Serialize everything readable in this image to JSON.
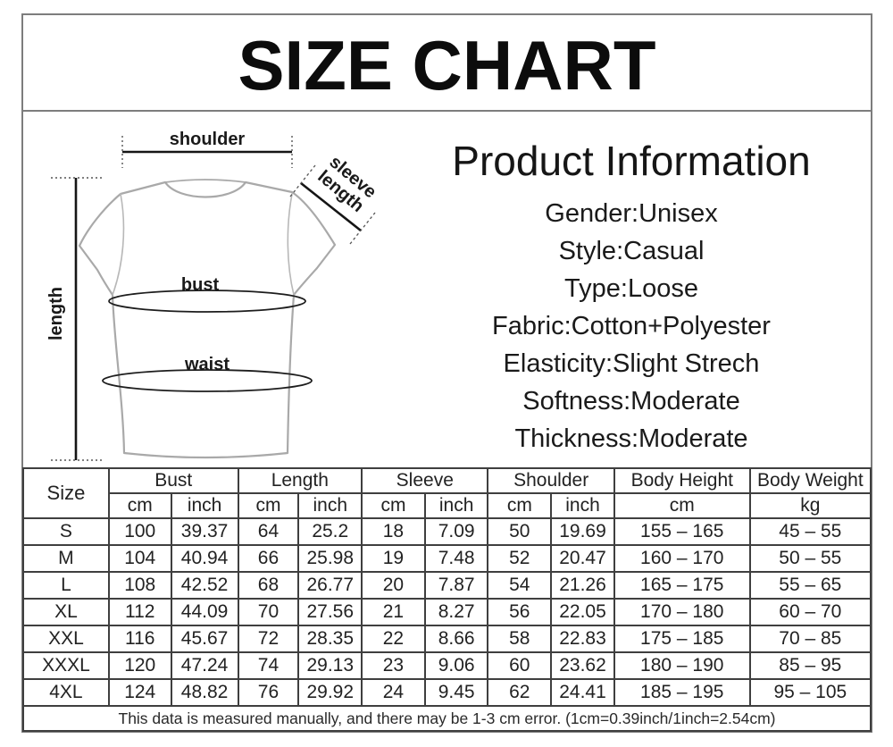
{
  "title": "SIZE CHART",
  "diagram": {
    "shoulder_label": "shoulder",
    "sleeve_label_line1": "sleeve",
    "sleeve_label_line2": "length",
    "length_label": "length",
    "bust_label": "bust",
    "waist_label": "waist"
  },
  "product_info": {
    "heading": "Product Information",
    "attributes": [
      "Gender:Unisex",
      "Style:Casual",
      "Type:Loose",
      "Fabric:Cotton+Polyester",
      "Elasticity:Slight Strech",
      "Softness:Moderate",
      "Thickness:Moderate"
    ]
  },
  "size_table": {
    "groups": [
      "Size",
      "Bust",
      "Length",
      "Sleeve",
      "Shoulder",
      "Body Height",
      "Body Weight"
    ],
    "units": [
      "cm",
      "inch",
      "cm",
      "inch",
      "cm",
      "inch",
      "cm",
      "inch",
      "cm",
      "kg"
    ],
    "rows": [
      [
        "S",
        "100",
        "39.37",
        "64",
        "25.2",
        "18",
        "7.09",
        "50",
        "19.69",
        "155 – 165",
        "45 – 55"
      ],
      [
        "M",
        "104",
        "40.94",
        "66",
        "25.98",
        "19",
        "7.48",
        "52",
        "20.47",
        "160 – 170",
        "50 – 55"
      ],
      [
        "L",
        "108",
        "42.52",
        "68",
        "26.77",
        "20",
        "7.87",
        "54",
        "21.26",
        "165 – 175",
        "55 – 65"
      ],
      [
        "XL",
        "112",
        "44.09",
        "70",
        "27.56",
        "21",
        "8.27",
        "56",
        "22.05",
        "170 – 180",
        "60 – 70"
      ],
      [
        "XXL",
        "116",
        "45.67",
        "72",
        "28.35",
        "22",
        "8.66",
        "58",
        "22.83",
        "175 – 185",
        "70 – 85"
      ],
      [
        "XXXL",
        "120",
        "47.24",
        "74",
        "29.13",
        "23",
        "9.06",
        "60",
        "23.62",
        "180 – 190",
        "85 – 95"
      ],
      [
        "4XL",
        "124",
        "48.82",
        "76",
        "29.92",
        "24",
        "9.45",
        "62",
        "24.41",
        "185 – 195",
        "95 – 105"
      ]
    ],
    "note": "This data is measured manually, and there may be 1-3 cm error. (1cm=0.39inch/1inch=2.54cm)"
  },
  "colors": {
    "frame_border": "#7d7d7d",
    "table_border": "#3f3f3f",
    "shirt_outline": "#a9a9a9",
    "measure_line": "#151515",
    "text": "#1c1c1c"
  }
}
